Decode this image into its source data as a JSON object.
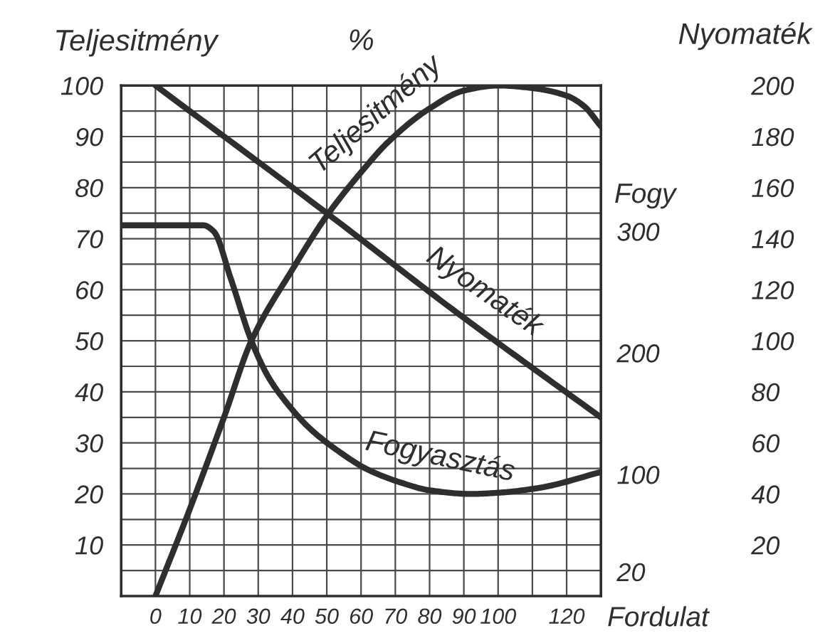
{
  "chart_data": {
    "type": "line",
    "title": "%",
    "xlabel": "Fordulat",
    "ylabel": "Teljesitmény",
    "y2label": "Fogy",
    "y3label": "Nyomaték",
    "xlim": [
      -10,
      130
    ],
    "xticks": [
      0,
      10,
      20,
      30,
      40,
      50,
      60,
      70,
      80,
      90,
      100,
      {
        "value": 110,
        "label": null
      },
      120
    ],
    "ylim": [
      0,
      100
    ],
    "yticks": [
      {
        "value": 5,
        "label": null
      },
      10,
      {
        "value": 15,
        "label": null
      },
      20,
      {
        "value": 25,
        "label": null
      },
      30,
      {
        "value": 35,
        "label": null
      },
      40,
      {
        "value": 45,
        "label": null
      },
      50,
      {
        "value": 55,
        "label": null
      },
      60,
      {
        "value": 65,
        "label": null
      },
      70,
      {
        "value": 75,
        "label": null
      },
      80,
      {
        "value": 85,
        "label": null
      },
      90,
      {
        "value": 95,
        "label": null
      },
      100
    ],
    "y2lim": [
      0,
      420
    ],
    "y2ticks": [
      20,
      100,
      200,
      300
    ],
    "y3lim": [
      0,
      200
    ],
    "y3ticks": [
      20,
      40,
      60,
      80,
      100,
      120,
      140,
      160,
      180,
      200
    ],
    "grid": true,
    "series": [
      {
        "name": "Teljesitmény",
        "color": "#2e2e2e",
        "x": [
          0,
          10,
          20,
          28,
          40,
          50,
          60,
          68,
          80,
          90,
          100,
          110,
          120,
          125,
          130
        ],
        "values": [
          0,
          17,
          35,
          50,
          64,
          74.5,
          83,
          89,
          95.5,
          99,
          100,
          99.5,
          98,
          96,
          92
        ]
      },
      {
        "name": "Nyomaték",
        "color": "#2e2e2e",
        "axis": "y3",
        "x": [
          0,
          50,
          88,
          130
        ],
        "values": [
          200,
          150,
          111,
          70
        ]
      },
      {
        "name": "Fogyasztás",
        "color": "#2e2e2e",
        "axis": "y2",
        "x": [
          -10,
          14,
          17,
          22,
          28,
          33,
          38,
          45,
          53,
          62,
          72,
          80,
          92,
          100,
          112,
          130
        ],
        "values": [
          305,
          305,
          300,
          261,
          210,
          180,
          160,
          138,
          120,
          104,
          93,
          87,
          84,
          85,
          89,
          102
        ]
      }
    ]
  }
}
